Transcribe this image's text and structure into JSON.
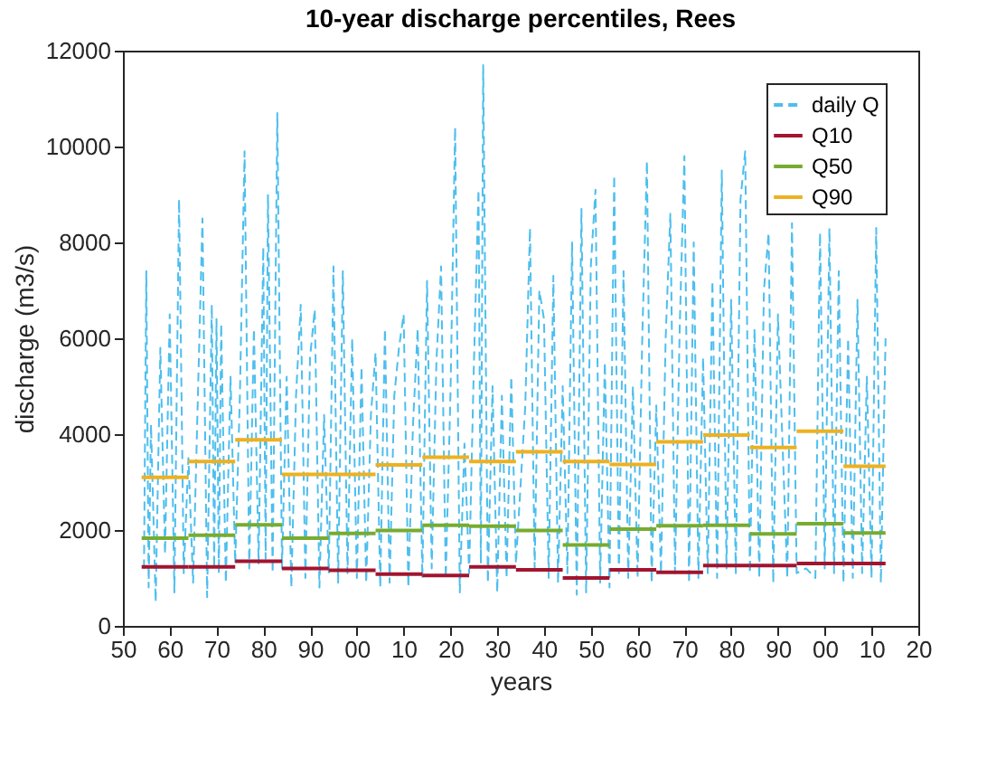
{
  "chart_data": {
    "type": "line",
    "title": "10-year discharge percentiles, Rees",
    "xlabel": "years",
    "ylabel": "discharge (m3/s)",
    "xlim": [
      1850,
      2020
    ],
    "xticks": [
      {
        "value": 1850,
        "label": "50"
      },
      {
        "value": 1860,
        "label": "60"
      },
      {
        "value": 1870,
        "label": "70"
      },
      {
        "value": 1880,
        "label": "80"
      },
      {
        "value": 1890,
        "label": "90"
      },
      {
        "value": 1900,
        "label": "00"
      },
      {
        "value": 1910,
        "label": "10"
      },
      {
        "value": 1920,
        "label": "20"
      },
      {
        "value": 1930,
        "label": "30"
      },
      {
        "value": 1940,
        "label": "40"
      },
      {
        "value": 1950,
        "label": "50"
      },
      {
        "value": 1960,
        "label": "60"
      },
      {
        "value": 1970,
        "label": "70"
      },
      {
        "value": 1980,
        "label": "80"
      },
      {
        "value": 1990,
        "label": "90"
      },
      {
        "value": 2000,
        "label": "00"
      },
      {
        "value": 2010,
        "label": "10"
      },
      {
        "value": 2020,
        "label": "20"
      }
    ],
    "ylim": [
      0,
      12000
    ],
    "yticks": [
      0,
      2000,
      4000,
      6000,
      8000,
      10000,
      12000
    ],
    "grid": false,
    "legend": "top right",
    "series": [
      {
        "name": "daily Q",
        "color": "#4dbeee",
        "line_style": "dashed",
        "x": [
          1854.5,
          1855,
          1855.5,
          1856,
          1857,
          1858,
          1859,
          1860,
          1861,
          1862,
          1863,
          1864,
          1865,
          1866,
          1867,
          1868,
          1869,
          1869.5,
          1870,
          1870.5,
          1871,
          1872,
          1873,
          1874,
          1875,
          1876,
          1877,
          1878,
          1879,
          1880,
          1880.5,
          1881,
          1882,
          1883,
          1884,
          1885,
          1886,
          1887,
          1888,
          1889,
          1890,
          1891,
          1892,
          1893,
          1894,
          1895,
          1896,
          1897,
          1898,
          1899,
          1900,
          1901,
          1902,
          1903,
          1904,
          1905,
          1906,
          1907,
          1908,
          1909,
          1910,
          1911,
          1912,
          1913,
          1914,
          1915,
          1916,
          1917,
          1918,
          1919,
          1920,
          1921,
          1922,
          1923,
          1924,
          1925,
          1926,
          1926.5,
          1927,
          1928,
          1929,
          1930,
          1931,
          1932,
          1933,
          1934,
          1936,
          1937,
          1938,
          1939,
          1940,
          1941,
          1942,
          1943,
          1944,
          1945,
          1946,
          1947,
          1948,
          1949,
          1950,
          1951,
          1952,
          1953,
          1954,
          1955,
          1956,
          1957,
          1958,
          1959,
          1960,
          1961,
          1962,
          1963,
          1964,
          1965,
          1966,
          1967,
          1968,
          1969,
          1970,
          1971,
          1972,
          1973,
          1974,
          1975,
          1976,
          1977,
          1978,
          1979,
          1980,
          1981,
          1982,
          1983,
          1984,
          1985,
          1986,
          1987,
          1988,
          1989,
          1990,
          1992,
          1993,
          1994,
          1996,
          1998,
          1999,
          2000,
          2001,
          2002,
          2003,
          2004,
          2005,
          2006,
          2007,
          2008,
          2009,
          2010,
          2011,
          2012,
          2013
        ],
        "values": [
          1200,
          7400,
          800,
          4200,
          500,
          5800,
          1500,
          6500,
          700,
          8900,
          1100,
          3500,
          900,
          4700,
          8500,
          600,
          6700,
          1200,
          6400,
          1100,
          6300,
          900,
          5200,
          1300,
          4800,
          9900,
          1200,
          6200,
          1300,
          7900,
          1400,
          9000,
          1100,
          10700,
          1200,
          5200,
          800,
          4800,
          6700,
          1000,
          5600,
          6600,
          800,
          4400,
          1100,
          7500,
          900,
          7400,
          1100,
          6000,
          1000,
          5400,
          900,
          4400,
          5700,
          800,
          6200,
          900,
          4800,
          5800,
          6500,
          800,
          4200,
          6200,
          1000,
          7200,
          1200,
          5500,
          7500,
          1000,
          4800,
          10400,
          700,
          3800,
          1100,
          5400,
          9100,
          1300,
          11700,
          900,
          5000,
          700,
          4800,
          1000,
          5200,
          1300,
          4600,
          8300,
          1200,
          7000,
          6400,
          1000,
          7300,
          900,
          5000,
          1100,
          8000,
          650,
          8700,
          700,
          7500,
          9100,
          900,
          5500,
          800,
          9400,
          1100,
          7400,
          1000,
          5000,
          1000,
          6000,
          9700,
          900,
          4600,
          1100,
          6000,
          8600,
          1100,
          6200,
          9800,
          900,
          8000,
          1000,
          5600,
          1100,
          7200,
          1000,
          9500,
          1200,
          6800,
          1100,
          8900,
          9900,
          1100,
          6200,
          1000,
          7000,
          8200,
          900,
          6500,
          1000,
          8400,
          1100,
          1200,
          1000,
          8200,
          1200,
          8300,
          1100,
          7400,
          900,
          6000,
          1000,
          6800,
          1100,
          5200,
          1000,
          8300,
          900,
          6000
        ]
      },
      {
        "name": "Q10",
        "color": "#a2142f",
        "line_style": "solid",
        "x": [
          1854,
          1864,
          1864,
          1874,
          1874,
          1884,
          1884,
          1894,
          1894,
          1904,
          1904,
          1914,
          1914,
          1924,
          1924,
          1934,
          1934,
          1944,
          1944,
          1954,
          1954,
          1964,
          1964,
          1974,
          1974,
          1984,
          1984,
          1994,
          1994,
          2004,
          2004,
          2013
        ],
        "values": [
          1230,
          1230,
          1230,
          1230,
          1350,
          1350,
          1200,
          1200,
          1160,
          1160,
          1080,
          1080,
          1050,
          1050,
          1230,
          1230,
          1170,
          1170,
          1000,
          1000,
          1170,
          1170,
          1120,
          1120,
          1260,
          1260,
          1260,
          1260,
          1300,
          1300,
          1300,
          1300
        ]
      },
      {
        "name": "Q50",
        "color": "#77ac30",
        "line_style": "solid",
        "x": [
          1854,
          1864,
          1864,
          1874,
          1874,
          1884,
          1884,
          1894,
          1894,
          1904,
          1904,
          1914,
          1914,
          1924,
          1924,
          1934,
          1934,
          1944,
          1944,
          1954,
          1954,
          1964,
          1964,
          1974,
          1974,
          1984,
          1984,
          1994,
          1994,
          2004,
          2004,
          2013
        ],
        "values": [
          1830,
          1830,
          1890,
          1890,
          2110,
          2110,
          1830,
          1830,
          1930,
          1930,
          1990,
          1990,
          2100,
          2100,
          2080,
          2080,
          1990,
          1990,
          1690,
          1690,
          2020,
          2020,
          2090,
          2090,
          2100,
          2100,
          1920,
          1920,
          2130,
          2130,
          1940,
          1940
        ]
      },
      {
        "name": "Q90",
        "color": "#edb120",
        "line_style": "solid",
        "x": [
          1854,
          1864,
          1864,
          1874,
          1874,
          1884,
          1884,
          1894,
          1894,
          1904,
          1904,
          1914,
          1914,
          1924,
          1924,
          1934,
          1934,
          1944,
          1944,
          1954,
          1954,
          1964,
          1964,
          1974,
          1974,
          1984,
          1984,
          1994,
          1994,
          2004,
          2004,
          2013
        ],
        "values": [
          3100,
          3100,
          3430,
          3430,
          3880,
          3880,
          3160,
          3160,
          3160,
          3160,
          3360,
          3360,
          3520,
          3520,
          3430,
          3430,
          3630,
          3630,
          3430,
          3430,
          3370,
          3370,
          3840,
          3840,
          3980,
          3980,
          3720,
          3720,
          4060,
          4060,
          3330,
          3330
        ]
      }
    ]
  }
}
